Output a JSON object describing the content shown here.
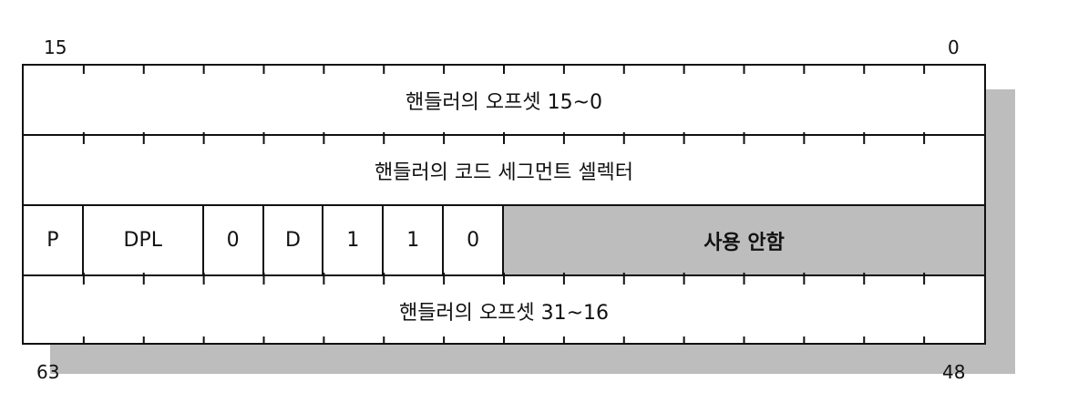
{
  "bit_labels": {
    "top_left": "15",
    "top_right": "0",
    "bottom_left": "63",
    "bottom_right": "48"
  },
  "rows": {
    "offset_low": "핸들러의 오프셋 15~0",
    "code_segment_selector": "핸들러의 코드 세그먼트 셀렉터",
    "offset_high": "핸들러의 오프셋 31~16"
  },
  "fields": [
    {
      "label": "P",
      "bits": 1
    },
    {
      "label": "DPL",
      "bits": 2
    },
    {
      "label": "0",
      "bits": 1
    },
    {
      "label": "D",
      "bits": 1
    },
    {
      "label": "1",
      "bits": 1
    },
    {
      "label": "1",
      "bits": 1
    },
    {
      "label": "0",
      "bits": 1
    },
    {
      "label": "사용 안함",
      "bits": 8,
      "shaded": true
    }
  ],
  "colors": {
    "shade": "#bdbdbd",
    "line": "#111111"
  }
}
